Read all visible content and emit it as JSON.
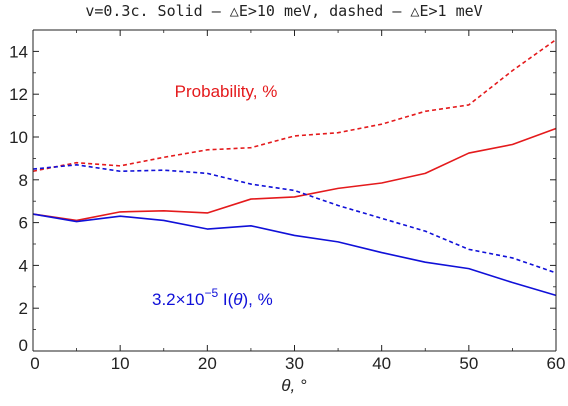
{
  "chart_data": {
    "type": "line",
    "title": "v=0.3c. Solid – △E>10 meV, dashed – △E>1 meV",
    "xlabel": "θ, °",
    "ylabel": "",
    "xlim": [
      0,
      60
    ],
    "ylim": [
      0,
      15
    ],
    "xticks": [
      "0",
      "10",
      "20",
      "30",
      "40",
      "50",
      "60"
    ],
    "yticks": [
      "0",
      "2",
      "4",
      "6",
      "8",
      "10",
      "12",
      "14"
    ],
    "grid": false,
    "legend": "none",
    "x": [
      0,
      5,
      10,
      15,
      20,
      25,
      30,
      35,
      40,
      45,
      50,
      55,
      60
    ],
    "series": [
      {
        "key": "prob_solid",
        "color": "#e41a1c",
        "dash": false,
        "values": [
          6.4,
          6.1,
          6.5,
          6.55,
          6.45,
          7.1,
          7.2,
          7.6,
          7.85,
          8.3,
          9.25,
          9.65,
          10.4
        ]
      },
      {
        "key": "prob_dashed",
        "color": "#e41a1c",
        "dash": true,
        "values": [
          8.4,
          8.8,
          8.65,
          9.05,
          9.4,
          9.5,
          10.05,
          10.2,
          10.6,
          11.2,
          11.5,
          13.1,
          14.55
        ]
      },
      {
        "key": "intensity_solid",
        "color": "#1010d8",
        "dash": false,
        "values": [
          6.4,
          6.05,
          6.3,
          6.1,
          5.7,
          5.85,
          5.4,
          5.1,
          4.6,
          4.15,
          3.85,
          3.2,
          2.6
        ]
      },
      {
        "key": "intensity_dashed",
        "color": "#1010d8",
        "dash": true,
        "values": [
          8.5,
          8.7,
          8.4,
          8.45,
          8.3,
          7.8,
          7.5,
          6.8,
          6.2,
          5.6,
          4.75,
          4.35,
          3.65
        ]
      }
    ],
    "annotations": {
      "probability": {
        "text": "Probability, %",
        "color": "#e41a1c"
      },
      "intensity": {
        "prefix": "3.2×10",
        "exponent": "−5",
        "mid": " I(",
        "var": "θ",
        "suffix": "), %",
        "color": "#1010d8"
      }
    }
  }
}
